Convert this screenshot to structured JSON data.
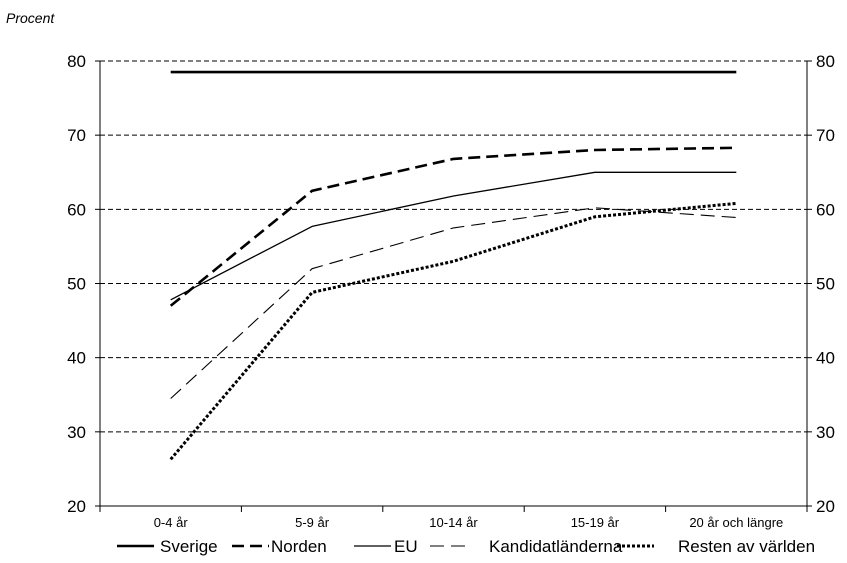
{
  "chart_data": {
    "type": "line",
    "ylabel": "Procent",
    "categories": [
      "0-4 år",
      "5-9 år",
      "10-14 år",
      "15-19 år",
      "20 år och längre"
    ],
    "ylim": [
      20,
      80
    ],
    "yticks": [
      20,
      30,
      40,
      50,
      60,
      70,
      80
    ],
    "grid": "horizontal dashed",
    "legend_position": "bottom",
    "series": [
      {
        "name": "Sverige",
        "values": [
          78.5,
          78.5,
          78.5,
          78.5,
          78.5
        ],
        "style": "thick-solid"
      },
      {
        "name": "Norden",
        "values": [
          47,
          62.5,
          66.8,
          68.0,
          68.3
        ],
        "style": "thick-dash"
      },
      {
        "name": "EU",
        "values": [
          47.8,
          57.7,
          61.8,
          65.0,
          65.0
        ],
        "style": "thin-solid"
      },
      {
        "name": "Kandidatländerna",
        "values": [
          34.5,
          52.0,
          57.5,
          60.2,
          58.9
        ],
        "style": "thin-dash"
      },
      {
        "name": "Resten av världen",
        "values": [
          26.3,
          48.8,
          53.0,
          59.0,
          60.8
        ],
        "style": "dotted"
      }
    ]
  }
}
